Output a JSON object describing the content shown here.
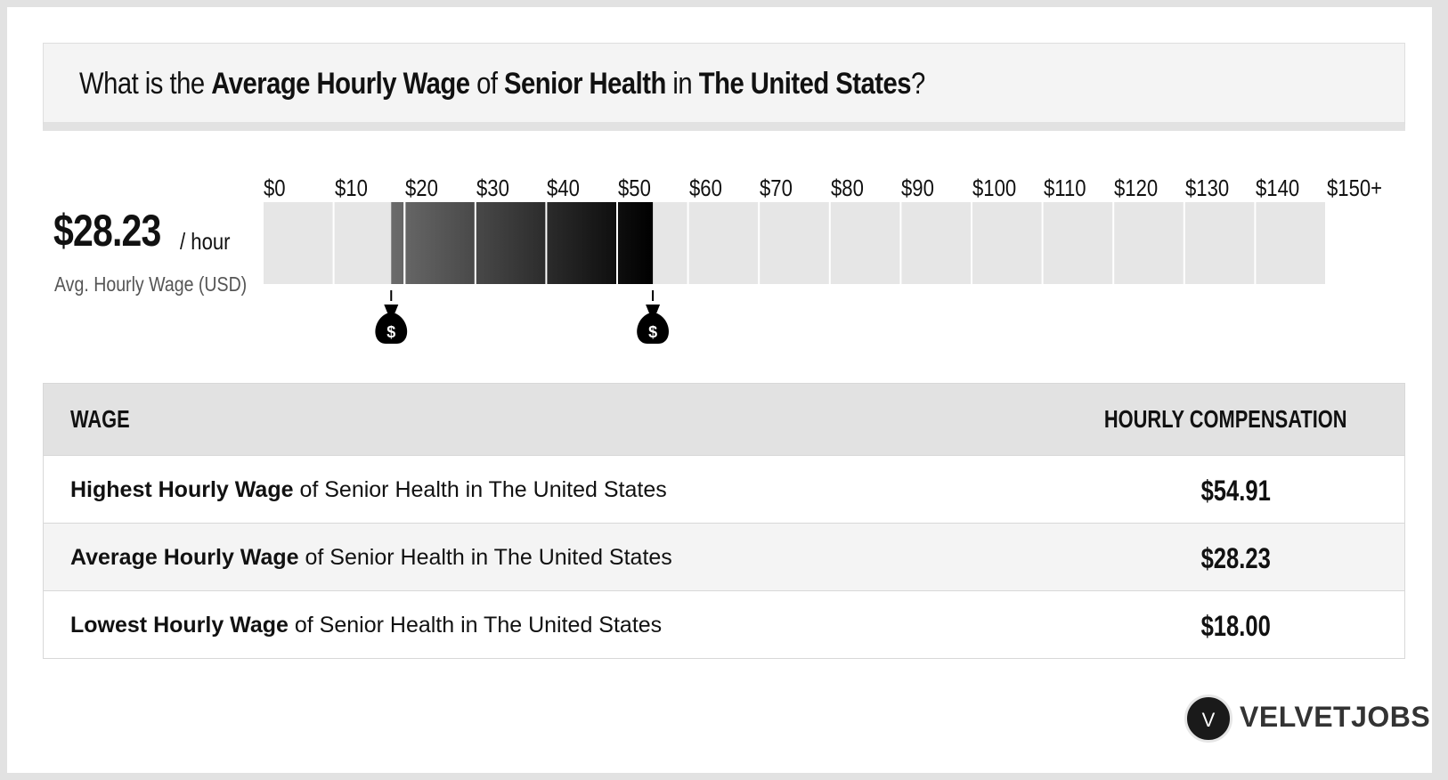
{
  "headline": {
    "part1": "What is the ",
    "part2": "Average Hourly Wage",
    "part3": " of ",
    "part4": "Senior Health",
    "part5": " in ",
    "part6": "The United States",
    "part7": "?"
  },
  "summary": {
    "value": "$28.23",
    "unit": "/ hour",
    "caption": "Avg. Hourly Wage (USD)"
  },
  "chart_data": {
    "type": "bar",
    "ticks": [
      "$0",
      "$10",
      "$20",
      "$30",
      "$40",
      "$50",
      "$60",
      "$70",
      "$80",
      "$90",
      "$100",
      "$110",
      "$120",
      "$130",
      "$140",
      "$150+"
    ],
    "xlim": [
      0,
      150
    ],
    "range": {
      "low": 18.0,
      "high": 54.91,
      "average": 28.23
    },
    "markers": [
      {
        "value": 18.0,
        "icon": "money-bag-icon"
      },
      {
        "value": 54.91,
        "icon": "money-bag-icon"
      }
    ],
    "colors": {
      "track": "#e6e6e6",
      "gradient_start": "#6b6b6b",
      "gradient_end": "#000000"
    }
  },
  "table": {
    "header_left": "WAGE",
    "header_right": "HOURLY COMPENSATION",
    "rows": [
      {
        "label_bold": "Highest Hourly Wage",
        "label_rest": " of Senior Health in The United States",
        "value": "$54.91"
      },
      {
        "label_bold": "Average Hourly Wage",
        "label_rest": " of Senior Health in The United States",
        "value": "$28.23"
      },
      {
        "label_bold": "Lowest Hourly Wage",
        "label_rest": " of Senior Health in The United States",
        "value": "$18.00"
      }
    ]
  },
  "brand": {
    "logo_letter": "V",
    "name": "VELVETJOBS"
  }
}
